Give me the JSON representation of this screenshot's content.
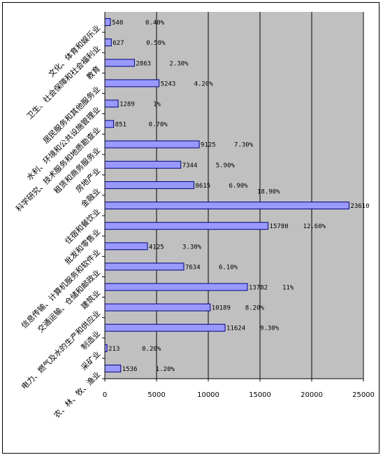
{
  "chart_data": {
    "type": "bar",
    "orientation": "horizontal",
    "categories": [
      "农、林、牧、渔业",
      "采矿业",
      "制造业",
      "电力、燃气及水的生产和供应业",
      "建筑业",
      "交通运输、仓储和邮政业",
      "信息传输、计算机服务和软件业",
      "批发和零售业",
      "住宿和餐饮业",
      "金融业",
      "房地产业",
      "租赁和商务服务业",
      "科学研究、技术服务和地质勘查业",
      "水利、环境和公共设施管理业",
      "居民服务和其他服务业",
      "教育",
      "卫生、社会保障和社会福利业",
      "文化、体育和娱乐业"
    ],
    "values": [
      1536,
      213,
      11624,
      10189,
      13782,
      7634,
      4125,
      15780,
      23610,
      8615,
      7344,
      9125,
      851,
      1289,
      5243,
      2863,
      627,
      540
    ],
    "value_labels": [
      "1536",
      "213",
      "11624",
      "10189",
      "13782",
      "7634",
      "4125",
      "15780",
      "23610",
      "8615",
      "7344",
      "9125",
      "851",
      "1289",
      "5243",
      "2863",
      "627",
      "540"
    ],
    "percent_labels": [
      "1.20%",
      "0.20%",
      "9.30%",
      "8.20%",
      "11%",
      "6.10%",
      "3.30%",
      "12.60%",
      "18.90%",
      "6.90%",
      "5.90%",
      "7.30%",
      "0.70%",
      "1%",
      "4.20%",
      "2.30%",
      "0.50%",
      "0.40%"
    ],
    "x_ticks": [
      "0",
      "5000",
      "10000",
      "15000",
      "20000",
      "25000"
    ],
    "xlim": [
      0,
      25000
    ],
    "grid": true,
    "legend": "none",
    "colors": {
      "plot_bg": "#c0c0c0",
      "bar_fill": "#9999ff",
      "bar_stroke": "#000080",
      "grid": "#000000"
    }
  }
}
